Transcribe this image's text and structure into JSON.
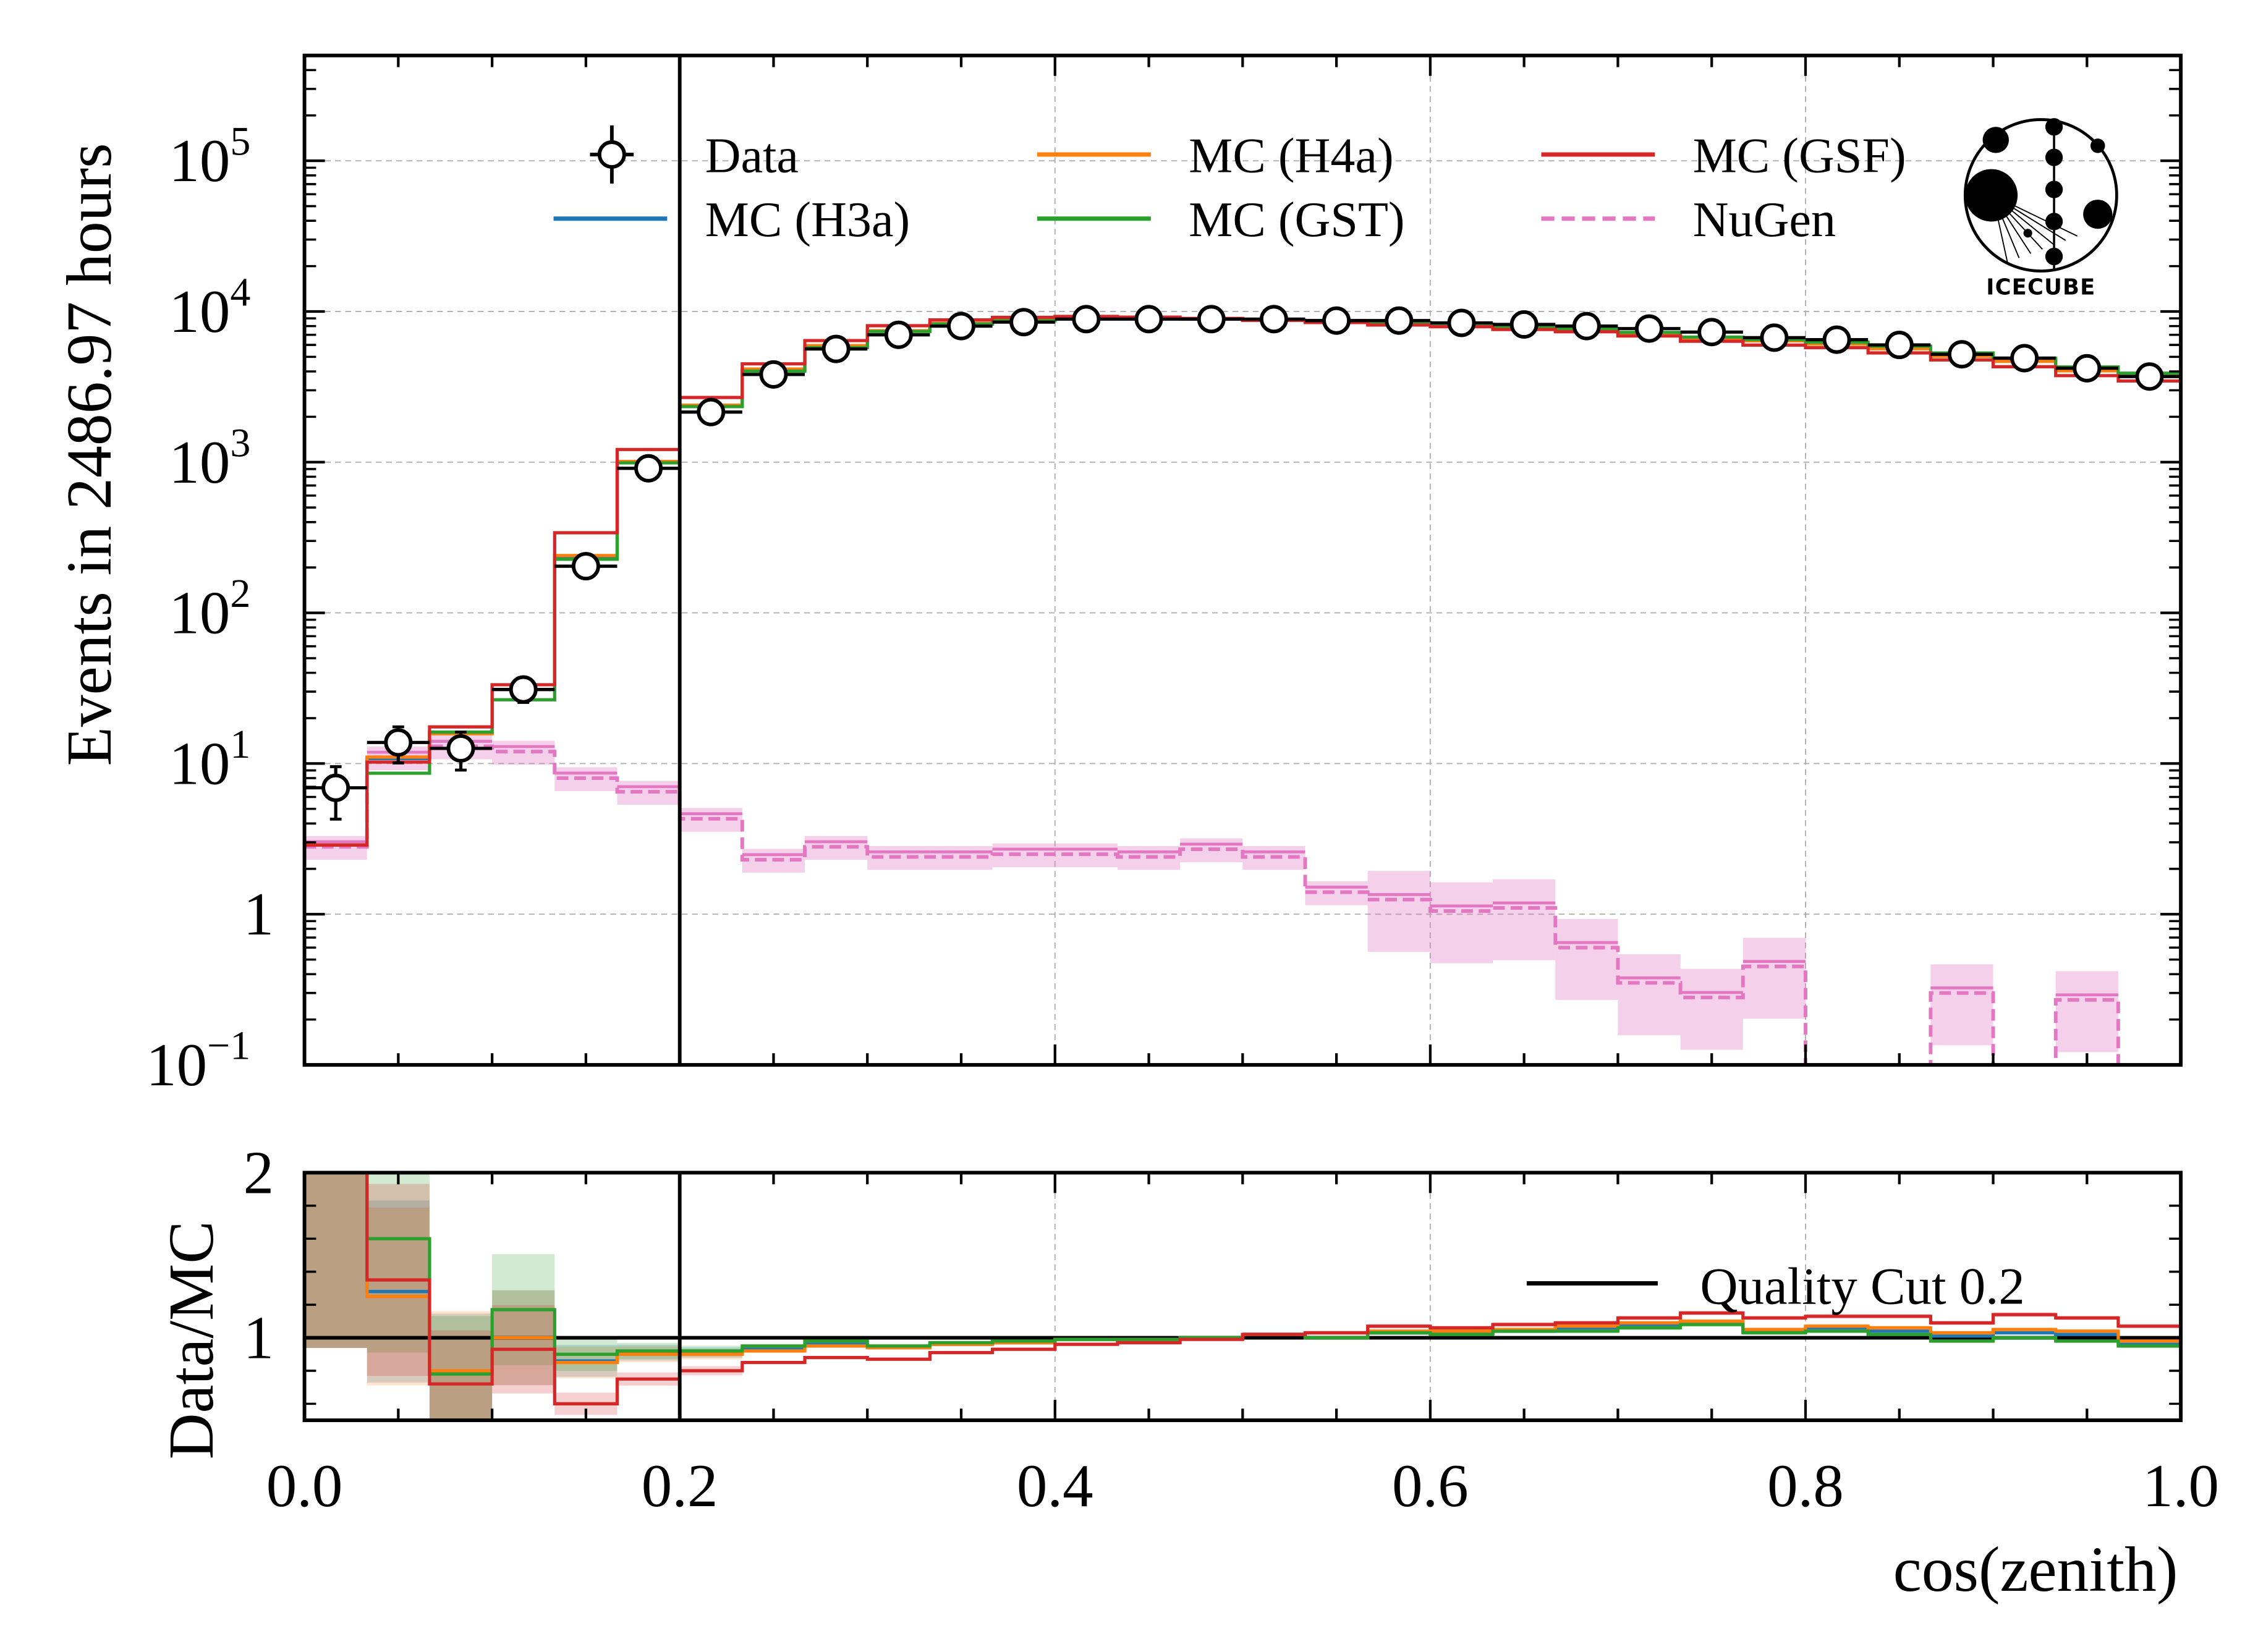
{
  "chart_data": [
    {
      "type": "line",
      "panel": "main",
      "xlabel": "",
      "ylabel": "Events in 2486.97 hours",
      "xlim": [
        0.0,
        1.0
      ],
      "ylim": [
        0.1,
        500000
      ],
      "yscale": "log",
      "grid": true,
      "legend_placement": "top",
      "ytick_labels": [
        {
          "base": "10",
          "exp": "−1",
          "value": 0.1
        },
        {
          "base": "1",
          "exp": "",
          "value": 1
        },
        {
          "base": "10",
          "exp": "1",
          "value": 10
        },
        {
          "base": "10",
          "exp": "2",
          "value": 100
        },
        {
          "base": "10",
          "exp": "3",
          "value": 1000
        },
        {
          "base": "10",
          "exp": "4",
          "value": 10000
        },
        {
          "base": "10",
          "exp": "5",
          "value": 100000
        }
      ],
      "vline": 0.2,
      "bin_edges_step": 0.0333333,
      "data": {
        "name": "Data",
        "color": "#000000",
        "values": [
          6.9,
          13.8,
          12.6,
          31,
          204,
          910,
          2150,
          3820,
          5640,
          7000,
          8000,
          8500,
          8900,
          8900,
          8900,
          8900,
          8700,
          8700,
          8400,
          8200,
          8000,
          7700,
          7300,
          6700,
          6500,
          6000,
          5200,
          4900,
          4200,
          3700
        ]
      },
      "nugen": {
        "name": "NuGen",
        "color": "#e377c2",
        "values": [
          2.8,
          11,
          13,
          12,
          8,
          6.5,
          4.3,
          2.3,
          2.8,
          2.4,
          2.4,
          2.5,
          2.5,
          2.4,
          2.7,
          2.4,
          1.4,
          1.25,
          1.05,
          1.1,
          0.6,
          0.35,
          0.28,
          0.45,
          0,
          0,
          0.3,
          0,
          0.27,
          0
        ]
      },
      "legend": [
        "Data",
        "MC (H3a)",
        "MC (H4a)",
        "MC (GST)",
        "MC (GSF)",
        "NuGen"
      ],
      "logo_text": "IceCube"
    },
    {
      "type": "line",
      "panel": "ratio",
      "xlabel": "cos(zenith)",
      "ylabel": "Data/MC",
      "xlim": [
        0.0,
        1.0
      ],
      "ylim": [
        0.5,
        2.0
      ],
      "yscale": "linear",
      "grid": true,
      "xtick_labels": [
        "0.0",
        "0.2",
        "0.4",
        "0.6",
        "0.8",
        "1.0"
      ],
      "ytick_labels": [
        "1",
        "2"
      ],
      "hline": 1.0,
      "legend": [
        "Quality Cut 0.2"
      ],
      "series": [
        {
          "name": "MC (H3a)",
          "color": "#1f77b4",
          "values": [
            2.4,
            1.28,
            0.79,
            1.0,
            0.86,
            0.91,
            0.91,
            0.93,
            0.96,
            0.94,
            0.96,
            0.97,
            0.99,
            0.99,
            1.0,
            1.02,
            1.0,
            1.03,
            1.03,
            1.04,
            1.06,
            1.08,
            1.09,
            1.04,
            1.06,
            1.04,
            1.01,
            1.03,
            1.02,
            0.96
          ]
        },
        {
          "name": "MC (H4a)",
          "color": "#ff7f0e",
          "values": [
            2.4,
            1.25,
            0.8,
            1.0,
            0.85,
            0.9,
            0.9,
            0.92,
            0.95,
            0.94,
            0.96,
            0.97,
            0.99,
            0.99,
            1.0,
            1.02,
            1.0,
            1.04,
            1.04,
            1.05,
            1.07,
            1.09,
            1.1,
            1.05,
            1.07,
            1.06,
            1.03,
            1.05,
            1.04,
            0.98
          ]
        },
        {
          "name": "MC (GST)",
          "color": "#2ca02c",
          "values": [
            2.4,
            1.6,
            0.78,
            1.17,
            0.9,
            0.92,
            0.92,
            0.95,
            0.98,
            0.95,
            0.97,
            0.98,
            0.99,
            0.99,
            1.0,
            1.02,
            1.0,
            1.03,
            1.02,
            1.04,
            1.04,
            1.06,
            1.08,
            1.03,
            1.04,
            1.02,
            0.98,
            1.0,
            0.98,
            0.95
          ]
        },
        {
          "name": "MC (GSF)",
          "color": "#d62728",
          "values": [
            2.4,
            1.35,
            0.72,
            0.93,
            0.6,
            0.75,
            0.8,
            0.85,
            0.88,
            0.87,
            0.91,
            0.93,
            0.96,
            0.97,
            0.99,
            1.02,
            1.03,
            1.07,
            1.06,
            1.08,
            1.09,
            1.12,
            1.15,
            1.12,
            1.13,
            1.13,
            1.09,
            1.14,
            1.12,
            1.07
          ]
        }
      ]
    }
  ]
}
